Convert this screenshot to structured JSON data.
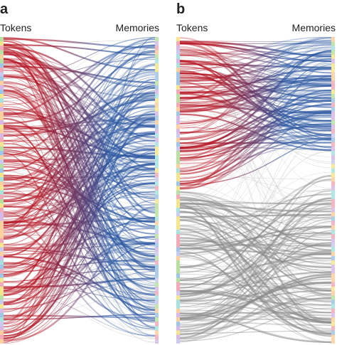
{
  "panels": [
    {
      "id": "a",
      "letter": "a",
      "left_label": "Tokens",
      "right_label": "Memories",
      "seed": 7,
      "gray_fraction": 0.0,
      "gray_split": 1.0
    },
    {
      "id": "b",
      "letter": "b",
      "left_label": "Tokens",
      "right_label": "Memories",
      "seed": 19,
      "gray_fraction": 0.5,
      "gray_split": 0.5
    }
  ],
  "colors": {
    "token_side": "#b3101e",
    "memory_side": "#2a56a0",
    "unused": "#8c8c8c",
    "token_stripe": [
      "#9ec6e8",
      "#f4a9b8",
      "#f6e58d",
      "#b8e0a0",
      "#d7b8e6",
      "#ffcf9e",
      "#a6e3df",
      "#c9c9f2"
    ]
  }
}
